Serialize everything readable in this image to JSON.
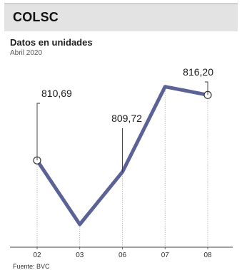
{
  "header": {
    "title": "COLSC"
  },
  "chart_data": {
    "type": "line",
    "title": "Datos en unidades",
    "subtitle": "Abril 2020",
    "source": "Fuente: BVC",
    "categories": [
      "02",
      "03",
      "06",
      "07",
      "08"
    ],
    "series": [
      {
        "values": [
          810.69,
          805.3,
          809.72,
          816.9,
          816.2
        ]
      }
    ],
    "ylim": [
      803.5,
      818.5
    ],
    "annotations": [
      {
        "index": 0,
        "label": "810,69"
      },
      {
        "index": 2,
        "label": "809,72"
      },
      {
        "index": 4,
        "label": "816,20"
      }
    ],
    "marker_points": [
      0,
      4
    ],
    "colors": {
      "line": "#5a6296",
      "accent": "#e3e3e3"
    }
  }
}
